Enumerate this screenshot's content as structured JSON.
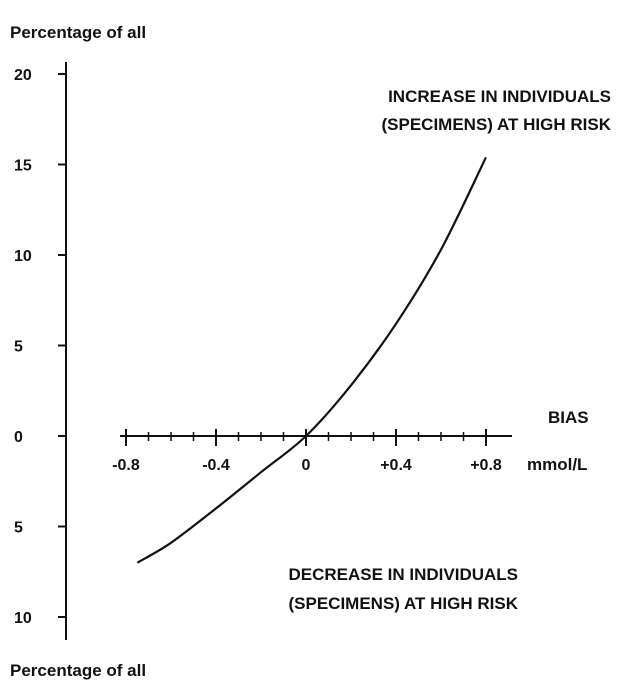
{
  "chart_data": {
    "type": "line",
    "ylabel_top": "Percentage of all",
    "ylabel_bottom": "Percentage of all",
    "xlabel": "BIAS",
    "xunit": "mmol/L",
    "y_ticks_up": [
      "20",
      "15",
      "10",
      "5",
      "0"
    ],
    "y_ticks_down": [
      "5",
      "10"
    ],
    "x_ticks": [
      "-0.8",
      "-0.4",
      "0",
      "+0.4",
      "+0.8"
    ],
    "xlim": [
      -0.8,
      0.8
    ],
    "ylim": [
      -10,
      20
    ],
    "series": [
      {
        "x": [
          -0.75,
          -0.6,
          -0.4,
          -0.2,
          0,
          0.2,
          0.4,
          0.6,
          0.8
        ],
        "y": [
          -7.0,
          -5.9,
          -4.0,
          -2.0,
          0,
          2.8,
          6.2,
          10.3,
          15.4
        ]
      }
    ],
    "annotation_top": [
      "INCREASE IN INDIVIDUALS",
      "(SPECIMENS) AT HIGH RISK"
    ],
    "annotation_bottom": [
      "DECREASE IN INDIVIDUALS",
      "(SPECIMENS) AT HIGH RISK"
    ],
    "grid": false,
    "colors": {
      "ink": "#111111"
    }
  }
}
